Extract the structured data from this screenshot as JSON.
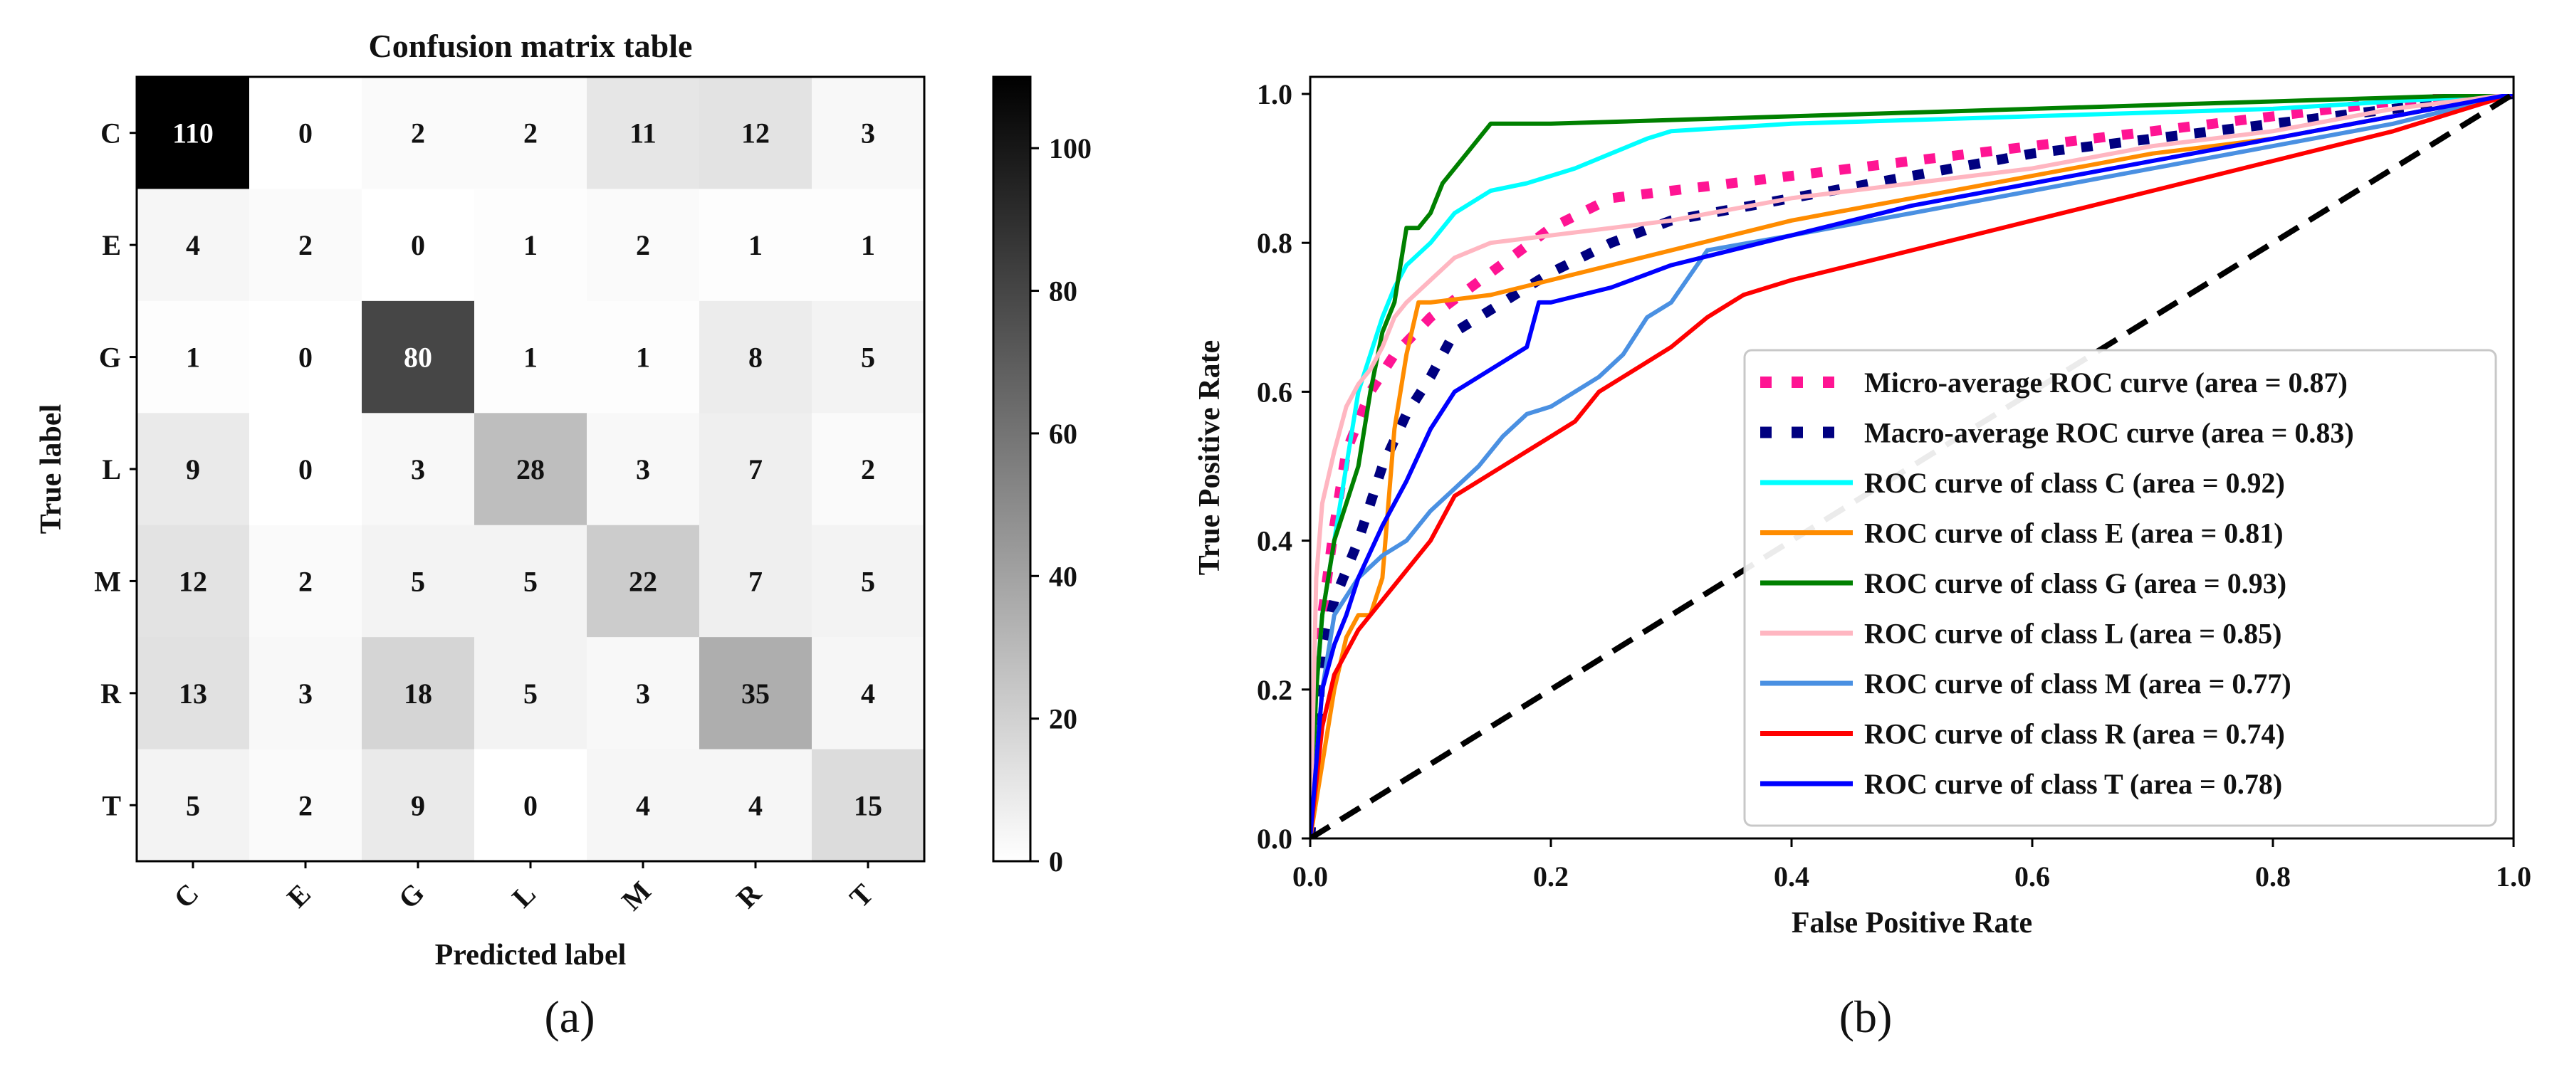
{
  "chart_data": [
    {
      "type": "heatmap",
      "title": "Confusion matrix table",
      "xlabel": "Predicted label",
      "ylabel": "True label",
      "x_categories": [
        "C",
        "E",
        "G",
        "L",
        "M",
        "R",
        "T"
      ],
      "y_categories": [
        "C",
        "E",
        "G",
        "L",
        "M",
        "R",
        "T"
      ],
      "matrix": [
        [
          110,
          0,
          2,
          2,
          11,
          12,
          3
        ],
        [
          4,
          2,
          0,
          1,
          2,
          1,
          1
        ],
        [
          1,
          0,
          80,
          1,
          1,
          8,
          5
        ],
        [
          9,
          0,
          3,
          28,
          3,
          7,
          2
        ],
        [
          12,
          2,
          5,
          5,
          22,
          7,
          5
        ],
        [
          13,
          3,
          18,
          5,
          3,
          35,
          4
        ],
        [
          5,
          2,
          9,
          0,
          4,
          4,
          15
        ]
      ],
      "colorbar": {
        "range": [
          0,
          110
        ],
        "ticks": [
          0,
          20,
          40,
          60,
          80,
          100
        ],
        "colormap": "Greys"
      },
      "panel_label": "(a)"
    },
    {
      "type": "line",
      "title": "",
      "xlabel": "False Positive Rate",
      "ylabel": "True Positive Rate",
      "xlim": [
        0.0,
        1.0
      ],
      "ylim": [
        0.0,
        1.0
      ],
      "xticks": [
        "0.0",
        "0.2",
        "0.4",
        "0.6",
        "0.8",
        "1.0"
      ],
      "yticks": [
        "0.0",
        "0.2",
        "0.4",
        "0.6",
        "0.8",
        "1.0"
      ],
      "legend_position": "lower-right",
      "panel_label": "(b)",
      "series": [
        {
          "name": "Micro-average ROC curve (area = 0.87)",
          "color": "#ff1493",
          "style": "dotted",
          "x": [
            0,
            0.01,
            0.02,
            0.03,
            0.05,
            0.07,
            0.1,
            0.15,
            0.2,
            0.25,
            0.3,
            0.4,
            0.5,
            0.6,
            0.7,
            0.8,
            0.9,
            1.0
          ],
          "y": [
            0,
            0.3,
            0.42,
            0.52,
            0.6,
            0.65,
            0.7,
            0.76,
            0.82,
            0.86,
            0.87,
            0.89,
            0.91,
            0.93,
            0.95,
            0.97,
            0.99,
            1.0
          ]
        },
        {
          "name": "Macro-average ROC curve (area = 0.83)",
          "color": "#000080",
          "style": "dotted",
          "x": [
            0,
            0.01,
            0.02,
            0.04,
            0.06,
            0.08,
            0.1,
            0.12,
            0.15,
            0.2,
            0.25,
            0.3,
            0.4,
            0.5,
            0.6,
            0.7,
            0.8,
            0.9,
            1.0
          ],
          "y": [
            0,
            0.25,
            0.32,
            0.4,
            0.5,
            0.57,
            0.62,
            0.68,
            0.71,
            0.76,
            0.8,
            0.83,
            0.86,
            0.89,
            0.92,
            0.94,
            0.96,
            0.98,
            1.0
          ]
        },
        {
          "name": "ROC curve of class C (area = 0.92)",
          "color": "#00ffff",
          "style": "solid",
          "x": [
            0,
            0.005,
            0.01,
            0.02,
            0.03,
            0.04,
            0.05,
            0.06,
            0.07,
            0.08,
            0.1,
            0.12,
            0.15,
            0.18,
            0.2,
            0.22,
            0.25,
            0.28,
            0.3,
            0.4,
            0.5,
            0.6,
            0.7,
            0.8,
            0.9,
            1.0
          ],
          "y": [
            0,
            0.2,
            0.3,
            0.4,
            0.5,
            0.6,
            0.65,
            0.7,
            0.74,
            0.77,
            0.8,
            0.84,
            0.87,
            0.88,
            0.89,
            0.9,
            0.92,
            0.94,
            0.95,
            0.96,
            0.965,
            0.97,
            0.975,
            0.98,
            0.99,
            1.0
          ]
        },
        {
          "name": "ROC curve of class E (area = 0.81)",
          "color": "#ff8c00",
          "style": "solid",
          "x": [
            0,
            0.01,
            0.02,
            0.03,
            0.04,
            0.05,
            0.06,
            0.07,
            0.08,
            0.09,
            0.1,
            0.15,
            0.2,
            0.25,
            0.3,
            0.4,
            0.5,
            0.6,
            0.7,
            0.8,
            0.9,
            1.0
          ],
          "y": [
            0,
            0.1,
            0.2,
            0.27,
            0.3,
            0.3,
            0.35,
            0.55,
            0.65,
            0.72,
            0.72,
            0.73,
            0.75,
            0.77,
            0.79,
            0.83,
            0.86,
            0.89,
            0.92,
            0.94,
            0.97,
            1.0
          ]
        },
        {
          "name": "ROC curve of class G (area = 0.93)",
          "color": "#008000",
          "style": "solid",
          "x": [
            0,
            0.005,
            0.01,
            0.02,
            0.03,
            0.04,
            0.05,
            0.06,
            0.07,
            0.08,
            0.09,
            0.1,
            0.11,
            0.12,
            0.13,
            0.14,
            0.15,
            0.2,
            0.3,
            0.4,
            0.5,
            0.6,
            0.7,
            0.8,
            0.9,
            1.0
          ],
          "y": [
            0,
            0.2,
            0.3,
            0.4,
            0.45,
            0.5,
            0.6,
            0.68,
            0.72,
            0.82,
            0.82,
            0.84,
            0.88,
            0.9,
            0.92,
            0.94,
            0.96,
            0.96,
            0.965,
            0.97,
            0.975,
            0.98,
            0.985,
            0.99,
            0.995,
            1.0
          ]
        },
        {
          "name": "ROC curve of class L (area = 0.85)",
          "color": "#ffb6c1",
          "style": "solid",
          "x": [
            0,
            0.005,
            0.01,
            0.02,
            0.03,
            0.04,
            0.05,
            0.06,
            0.07,
            0.08,
            0.1,
            0.12,
            0.15,
            0.2,
            0.25,
            0.3,
            0.4,
            0.5,
            0.6,
            0.7,
            0.8,
            0.9,
            1.0
          ],
          "y": [
            0,
            0.35,
            0.45,
            0.52,
            0.58,
            0.61,
            0.63,
            0.66,
            0.7,
            0.72,
            0.75,
            0.78,
            0.8,
            0.81,
            0.82,
            0.83,
            0.86,
            0.88,
            0.9,
            0.93,
            0.95,
            0.98,
            1.0
          ]
        },
        {
          "name": "ROC curve of class M (area = 0.77)",
          "color": "#4a90e2",
          "style": "solid",
          "x": [
            0,
            0.01,
            0.02,
            0.04,
            0.06,
            0.08,
            0.1,
            0.12,
            0.14,
            0.16,
            0.18,
            0.2,
            0.22,
            0.24,
            0.26,
            0.28,
            0.3,
            0.33,
            0.4,
            0.5,
            0.6,
            0.7,
            0.8,
            0.9,
            1.0
          ],
          "y": [
            0,
            0.2,
            0.3,
            0.35,
            0.38,
            0.4,
            0.44,
            0.47,
            0.5,
            0.54,
            0.57,
            0.58,
            0.6,
            0.62,
            0.65,
            0.7,
            0.72,
            0.79,
            0.81,
            0.84,
            0.87,
            0.9,
            0.93,
            0.96,
            1.0
          ]
        },
        {
          "name": "ROC curve of class R (area = 0.74)",
          "color": "#ff0000",
          "style": "solid",
          "x": [
            0,
            0.01,
            0.02,
            0.03,
            0.04,
            0.06,
            0.08,
            0.1,
            0.12,
            0.14,
            0.16,
            0.18,
            0.2,
            0.22,
            0.24,
            0.26,
            0.28,
            0.3,
            0.33,
            0.36,
            0.4,
            0.5,
            0.6,
            0.7,
            0.8,
            0.9,
            1.0
          ],
          "y": [
            0,
            0.15,
            0.22,
            0.25,
            0.28,
            0.32,
            0.36,
            0.4,
            0.46,
            0.48,
            0.5,
            0.52,
            0.54,
            0.56,
            0.6,
            0.62,
            0.64,
            0.66,
            0.7,
            0.73,
            0.75,
            0.79,
            0.83,
            0.87,
            0.91,
            0.95,
            1.0
          ]
        },
        {
          "name": "ROC curve of class T (area = 0.78)",
          "color": "#0000ff",
          "style": "solid",
          "x": [
            0,
            0.01,
            0.02,
            0.03,
            0.04,
            0.06,
            0.08,
            0.1,
            0.12,
            0.14,
            0.16,
            0.18,
            0.19,
            0.2,
            0.25,
            0.3,
            0.4,
            0.5,
            0.6,
            0.7,
            0.8,
            0.9,
            1.0
          ],
          "y": [
            0,
            0.2,
            0.26,
            0.3,
            0.35,
            0.42,
            0.48,
            0.55,
            0.6,
            0.62,
            0.64,
            0.66,
            0.72,
            0.72,
            0.74,
            0.77,
            0.81,
            0.85,
            0.88,
            0.91,
            0.94,
            0.97,
            1.0
          ]
        },
        {
          "name": "",
          "color": "#000000",
          "style": "dashed",
          "legend": false,
          "x": [
            0,
            1.0
          ],
          "y": [
            0,
            1.0
          ]
        }
      ]
    }
  ]
}
